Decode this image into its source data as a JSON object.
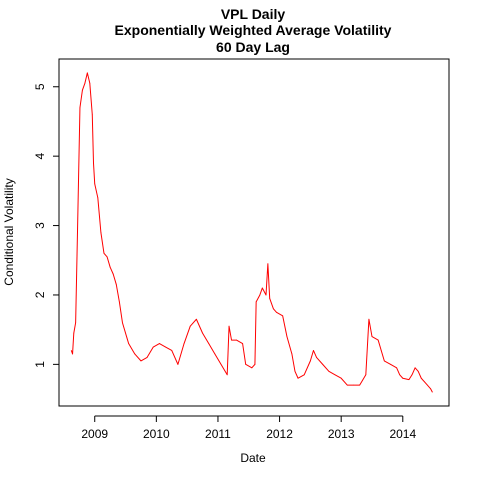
{
  "chart_data": {
    "type": "line",
    "title": "VPL Daily",
    "subtitle_lines": [
      "Exponentially Weighted Average Volatility",
      "60 Day Lag"
    ],
    "xlabel": "Date",
    "ylabel": "Conditional Volatility",
    "x_ticks": [
      {
        "value": 2009.0,
        "label": "2009"
      },
      {
        "value": 2010.0,
        "label": "2010"
      },
      {
        "value": 2011.0,
        "label": "2011"
      },
      {
        "value": 2012.0,
        "label": "2012"
      },
      {
        "value": 2013.0,
        "label": "2013"
      },
      {
        "value": 2014.0,
        "label": "2014"
      }
    ],
    "y_ticks": [
      {
        "value": 1,
        "label": "1"
      },
      {
        "value": 2,
        "label": "2"
      },
      {
        "value": 3,
        "label": "3"
      },
      {
        "value": 4,
        "label": "4"
      },
      {
        "value": 5,
        "label": "5"
      }
    ],
    "xlim": [
      2008.42,
      2014.75
    ],
    "ylim": [
      0.4,
      5.4
    ],
    "grid": false,
    "series": [
      {
        "color": "#ff0000",
        "points": [
          [
            2008.62,
            1.2
          ],
          [
            2008.64,
            1.15
          ],
          [
            2008.66,
            1.45
          ],
          [
            2008.69,
            1.6
          ],
          [
            2008.72,
            2.9
          ],
          [
            2008.76,
            4.7
          ],
          [
            2008.8,
            4.95
          ],
          [
            2008.84,
            5.05
          ],
          [
            2008.88,
            5.2
          ],
          [
            2008.92,
            5.05
          ],
          [
            2008.96,
            4.6
          ],
          [
            2008.98,
            3.9
          ],
          [
            2009.0,
            3.6
          ],
          [
            2009.05,
            3.4
          ],
          [
            2009.1,
            2.9
          ],
          [
            2009.15,
            2.6
          ],
          [
            2009.2,
            2.55
          ],
          [
            2009.25,
            2.4
          ],
          [
            2009.3,
            2.3
          ],
          [
            2009.35,
            2.15
          ],
          [
            2009.4,
            1.9
          ],
          [
            2009.45,
            1.6
          ],
          [
            2009.55,
            1.3
          ],
          [
            2009.65,
            1.15
          ],
          [
            2009.75,
            1.05
          ],
          [
            2009.85,
            1.1
          ],
          [
            2009.95,
            1.25
          ],
          [
            2010.05,
            1.3
          ],
          [
            2010.15,
            1.25
          ],
          [
            2010.25,
            1.2
          ],
          [
            2010.35,
            1.0
          ],
          [
            2010.45,
            1.3
          ],
          [
            2010.55,
            1.55
          ],
          [
            2010.65,
            1.65
          ],
          [
            2010.75,
            1.45
          ],
          [
            2010.85,
            1.3
          ],
          [
            2010.95,
            1.15
          ],
          [
            2011.05,
            1.0
          ],
          [
            2011.15,
            0.85
          ],
          [
            2011.18,
            1.55
          ],
          [
            2011.22,
            1.35
          ],
          [
            2011.3,
            1.35
          ],
          [
            2011.4,
            1.3
          ],
          [
            2011.45,
            1.0
          ],
          [
            2011.55,
            0.95
          ],
          [
            2011.6,
            1.0
          ],
          [
            2011.62,
            1.9
          ],
          [
            2011.68,
            2.0
          ],
          [
            2011.72,
            2.1
          ],
          [
            2011.78,
            2.0
          ],
          [
            2011.81,
            2.45
          ],
          [
            2011.84,
            1.95
          ],
          [
            2011.9,
            1.8
          ],
          [
            2011.95,
            1.75
          ],
          [
            2012.05,
            1.7
          ],
          [
            2012.12,
            1.4
          ],
          [
            2012.2,
            1.15
          ],
          [
            2012.25,
            0.9
          ],
          [
            2012.3,
            0.8
          ],
          [
            2012.4,
            0.85
          ],
          [
            2012.5,
            1.05
          ],
          [
            2012.55,
            1.2
          ],
          [
            2012.6,
            1.1
          ],
          [
            2012.7,
            1.0
          ],
          [
            2012.8,
            0.9
          ],
          [
            2012.9,
            0.85
          ],
          [
            2013.0,
            0.8
          ],
          [
            2013.1,
            0.7
          ],
          [
            2013.2,
            0.7
          ],
          [
            2013.3,
            0.7
          ],
          [
            2013.4,
            0.85
          ],
          [
            2013.45,
            1.65
          ],
          [
            2013.5,
            1.4
          ],
          [
            2013.6,
            1.35
          ],
          [
            2013.65,
            1.2
          ],
          [
            2013.7,
            1.05
          ],
          [
            2013.8,
            1.0
          ],
          [
            2013.9,
            0.95
          ],
          [
            2013.95,
            0.85
          ],
          [
            2014.0,
            0.8
          ],
          [
            2014.1,
            0.78
          ],
          [
            2014.15,
            0.85
          ],
          [
            2014.2,
            0.95
          ],
          [
            2014.25,
            0.9
          ],
          [
            2014.3,
            0.8
          ],
          [
            2014.35,
            0.75
          ],
          [
            2014.4,
            0.7
          ],
          [
            2014.45,
            0.65
          ],
          [
            2014.48,
            0.6
          ]
        ]
      }
    ]
  }
}
